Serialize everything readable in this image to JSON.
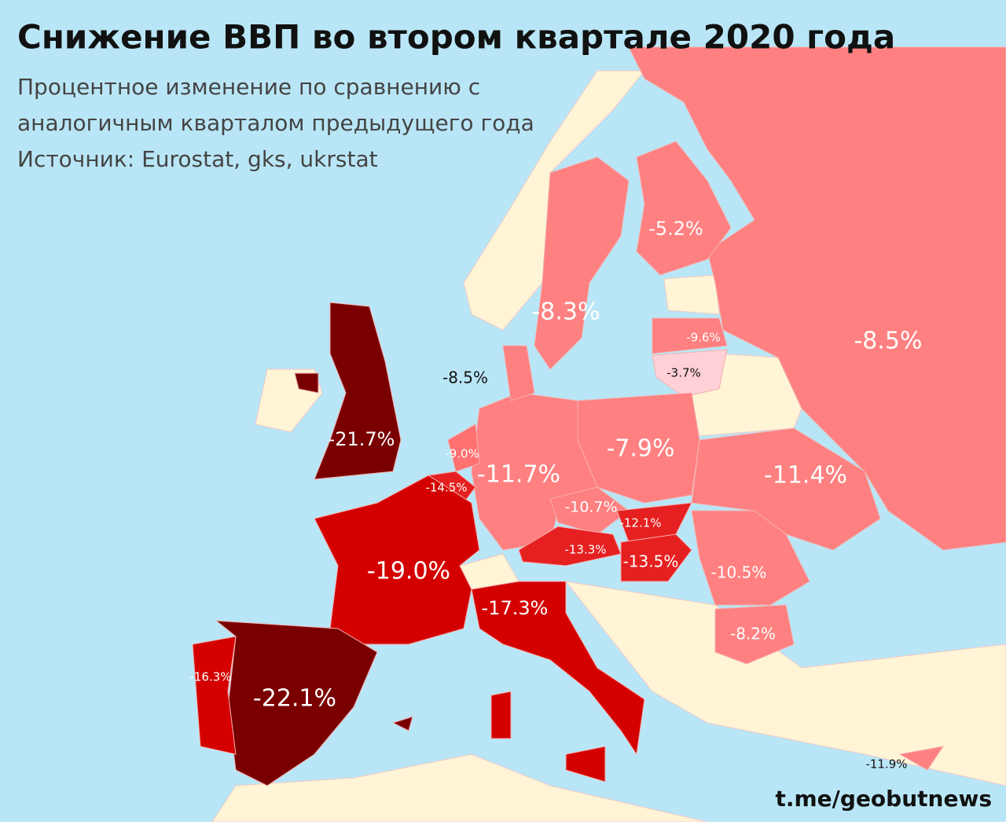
{
  "title": "Снижение ВВП во втором квартале 2020 года",
  "subtitle": [
    "Процентное изменение по сравнению с",
    "аналогичным кварталом предыдущего года"
  ],
  "source": "Источник: Eurostat, gks, ukrstat",
  "credit": "t.me/geobutnews",
  "regions": [
    {
      "label": "-8.5%",
      "color": "#ff8080"
    },
    {
      "label": "-5.2%",
      "color": "#ff8080"
    },
    {
      "label": "-8.3%",
      "color": "#ff8080"
    },
    {
      "label": "-9.6%",
      "color": "#ff8080"
    },
    {
      "label": "-3.7%",
      "color": "#ffd0d6"
    },
    {
      "label": "-7.9%",
      "color": "#ff8080"
    },
    {
      "label": "-11.4%",
      "color": "#ff8080"
    },
    {
      "label": "-11.7%",
      "color": "#ff8080"
    },
    {
      "label": "-8.5%",
      "color": "#ff8080"
    },
    {
      "label": "-9.0%",
      "color": "#ff7070"
    },
    {
      "label": "-14.5%",
      "color": "#e62020"
    },
    {
      "label": "-19.0%",
      "color": "#d40000"
    },
    {
      "label": "-10.7%",
      "color": "#ff8080"
    },
    {
      "label": "-12.1%",
      "color": "#e62020"
    },
    {
      "label": "-13.3%",
      "color": "#e62020"
    },
    {
      "label": "-13.5%",
      "color": "#e62020"
    },
    {
      "label": "-10.5%",
      "color": "#ff8080"
    },
    {
      "label": "-8.2%",
      "color": "#ff8080"
    },
    {
      "label": "-17.3%",
      "color": "#d40000"
    },
    {
      "label": "-22.1%",
      "color": "#7a0000"
    },
    {
      "label": "-16.3%",
      "color": "#d40000"
    },
    {
      "label": "-21.7%",
      "color": "#7a0000"
    },
    {
      "label": "-11.9%",
      "color": "#ff8080"
    }
  ]
}
